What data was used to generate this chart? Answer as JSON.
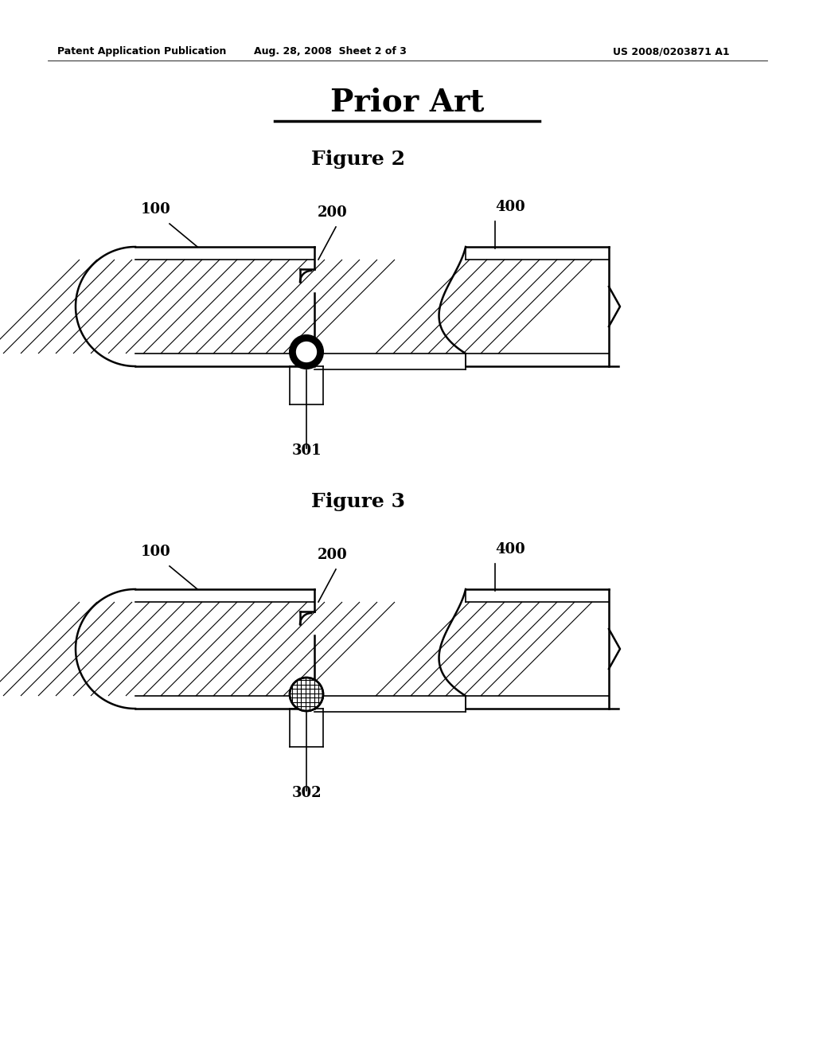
{
  "bg_color": "#ffffff",
  "header_left": "Patent Application Publication",
  "header_center": "Aug. 28, 2008  Sheet 2 of 3",
  "header_right": "US 2008/0203871 A1",
  "prior_art_title": "Prior Art",
  "fig2_title": "Figure 2",
  "fig3_title": "Figure 3",
  "label_100": "100",
  "label_200": "200",
  "label_301": "301",
  "label_302": "302",
  "label_400": "400"
}
